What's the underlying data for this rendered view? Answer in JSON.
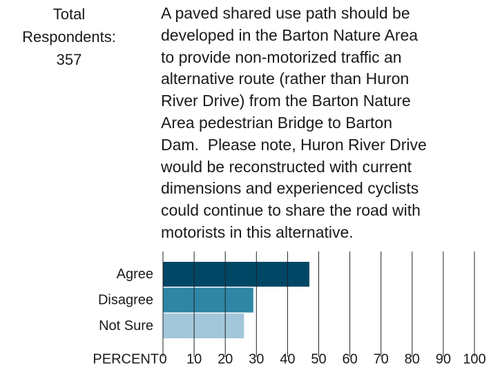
{
  "chart_data": {
    "type": "bar",
    "orientation": "horizontal",
    "respondents_label": "Total Respondents:",
    "respondents": 357,
    "title": [
      "A paved shared use path should be",
      "developed in the Barton Nature Area",
      "to provide non-motorized traffic an",
      "alternative route (rather than Huron",
      "River Drive) from the Barton Nature",
      "Area pedestrian Bridge to Barton",
      "Dam.  Please note, Huron River Drive",
      "would be reconstructed with current",
      "dimensions and experienced cyclists",
      "could continue to share the road with",
      "motorists in this alternative."
    ],
    "x_label": "PERCENT",
    "categories": [
      "Agree",
      "Disagree",
      "Not Sure"
    ],
    "values": [
      47,
      29,
      26
    ],
    "colors": [
      "#004766",
      "#2e86a4",
      "#a3c6da"
    ],
    "xlim": [
      0,
      100
    ],
    "xticks": [
      0,
      10,
      20,
      30,
      40,
      50,
      60,
      70,
      80,
      90,
      100
    ],
    "grid": true
  }
}
